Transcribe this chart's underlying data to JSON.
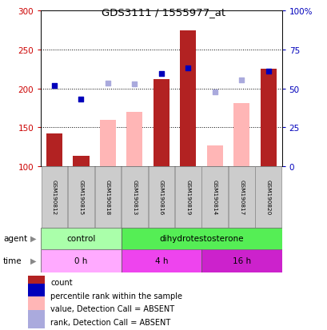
{
  "title": "GDS3111 / 1555977_at",
  "samples": [
    "GSM190812",
    "GSM190815",
    "GSM190818",
    "GSM190813",
    "GSM190816",
    "GSM190819",
    "GSM190814",
    "GSM190817",
    "GSM190820"
  ],
  "count_values": [
    142,
    113,
    null,
    null,
    212,
    275,
    null,
    null,
    225
  ],
  "count_absent": [
    null,
    null,
    160,
    170,
    null,
    null,
    127,
    181,
    null
  ],
  "rank_present": [
    204,
    186,
    null,
    null,
    219,
    226,
    null,
    null,
    222
  ],
  "rank_absent": [
    null,
    null,
    207,
    206,
    null,
    null,
    196,
    211,
    null
  ],
  "ylim_left": [
    100,
    300
  ],
  "ylim_right": [
    0,
    100
  ],
  "yticks_left": [
    100,
    150,
    200,
    250,
    300
  ],
  "yticks_right": [
    0,
    25,
    50,
    75,
    100
  ],
  "yticklabels_right": [
    "0",
    "25",
    "50",
    "75",
    "100%"
  ],
  "bar_bottom": 100,
  "red_color": "#b22222",
  "pink_color": "#ffb6b6",
  "blue_color": "#0000bb",
  "light_blue_color": "#aaaadd",
  "bg_color": "#ffffff",
  "agent_groups": [
    {
      "label": "control",
      "start": 0,
      "end": 3,
      "color": "#aaffaa"
    },
    {
      "label": "dihydrotestosterone",
      "start": 3,
      "end": 9,
      "color": "#55ee55"
    }
  ],
  "time_colors": [
    "#ffaaff",
    "#ee44ee",
    "#cc22cc"
  ],
  "time_groups": [
    {
      "label": "0 h",
      "start": 0,
      "end": 3
    },
    {
      "label": "4 h",
      "start": 3,
      "end": 6
    },
    {
      "label": "16 h",
      "start": 6,
      "end": 9
    }
  ],
  "legend_items": [
    {
      "label": "count",
      "color": "#b22222"
    },
    {
      "label": "percentile rank within the sample",
      "color": "#0000bb"
    },
    {
      "label": "value, Detection Call = ABSENT",
      "color": "#ffb6b6"
    },
    {
      "label": "rank, Detection Call = ABSENT",
      "color": "#aaaadd"
    }
  ],
  "ylabel_left_color": "#cc0000",
  "ylabel_right_color": "#0000bb"
}
